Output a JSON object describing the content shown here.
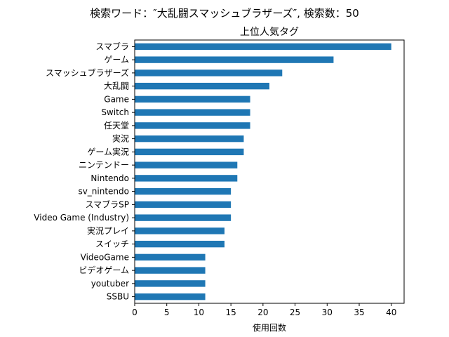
{
  "suptitle": "検索ワード：″大乱闘スマッシュブラザーズ″, 検索数：50",
  "chart_data": {
    "type": "bar",
    "orientation": "horizontal",
    "title": "上位人気タグ",
    "xlabel": "使用回数",
    "ylabel": "",
    "xlim": [
      0,
      42
    ],
    "xticks": [
      0,
      5,
      10,
      15,
      20,
      25,
      30,
      35,
      40
    ],
    "grid": false,
    "bar_color": "#1f77b4",
    "categories": [
      "スマブラ",
      "ゲーム",
      "スマッシュブラザーズ",
      "大乱闘",
      "Game",
      "Switch",
      "任天堂",
      "実況",
      "ゲーム実況",
      "ニンテンドー",
      "Nintendo",
      "sv_nintendo",
      "スマブラSP",
      "Video Game (Industry)",
      "実況プレイ",
      "スイッチ",
      "VideoGame",
      "ビデオゲーム",
      "youtuber",
      "SSBU"
    ],
    "values": [
      40,
      31,
      23,
      21,
      18,
      18,
      18,
      17,
      17,
      16,
      16,
      15,
      15,
      15,
      14,
      14,
      11,
      11,
      11,
      11
    ]
  }
}
